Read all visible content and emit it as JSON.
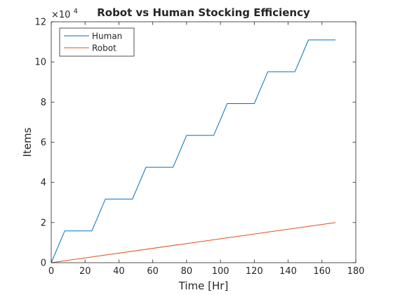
{
  "chart_data": {
    "type": "line",
    "title": "Robot vs Human Stocking Efficiency",
    "xlabel": "Time [Hr]",
    "ylabel": "Items",
    "xlim": [
      0,
      180
    ],
    "ylim": [
      0,
      120000
    ],
    "xticks": [
      0,
      20,
      40,
      60,
      80,
      100,
      120,
      140,
      160,
      180
    ],
    "yticks": [
      0,
      20000,
      40000,
      60000,
      80000,
      100000,
      120000
    ],
    "ytick_labels": [
      "0",
      "2",
      "4",
      "6",
      "8",
      "10",
      "12"
    ],
    "y_exponent_base": "×10",
    "y_exponent_power": "4",
    "grid": false,
    "legend_position": "top-left",
    "series": [
      {
        "name": "Human",
        "color": "#0072BD",
        "x": [
          0,
          8,
          24,
          32,
          48,
          56,
          72,
          80,
          96,
          104,
          120,
          128,
          144,
          152,
          168
        ],
        "y": [
          0,
          15850,
          15850,
          31700,
          31700,
          47550,
          47550,
          63400,
          63400,
          79250,
          79250,
          95100,
          95100,
          110950,
          110950
        ]
      },
      {
        "name": "Robot",
        "color": "#D95319",
        "x": [
          0,
          168
        ],
        "y": [
          0,
          20000
        ]
      }
    ]
  }
}
